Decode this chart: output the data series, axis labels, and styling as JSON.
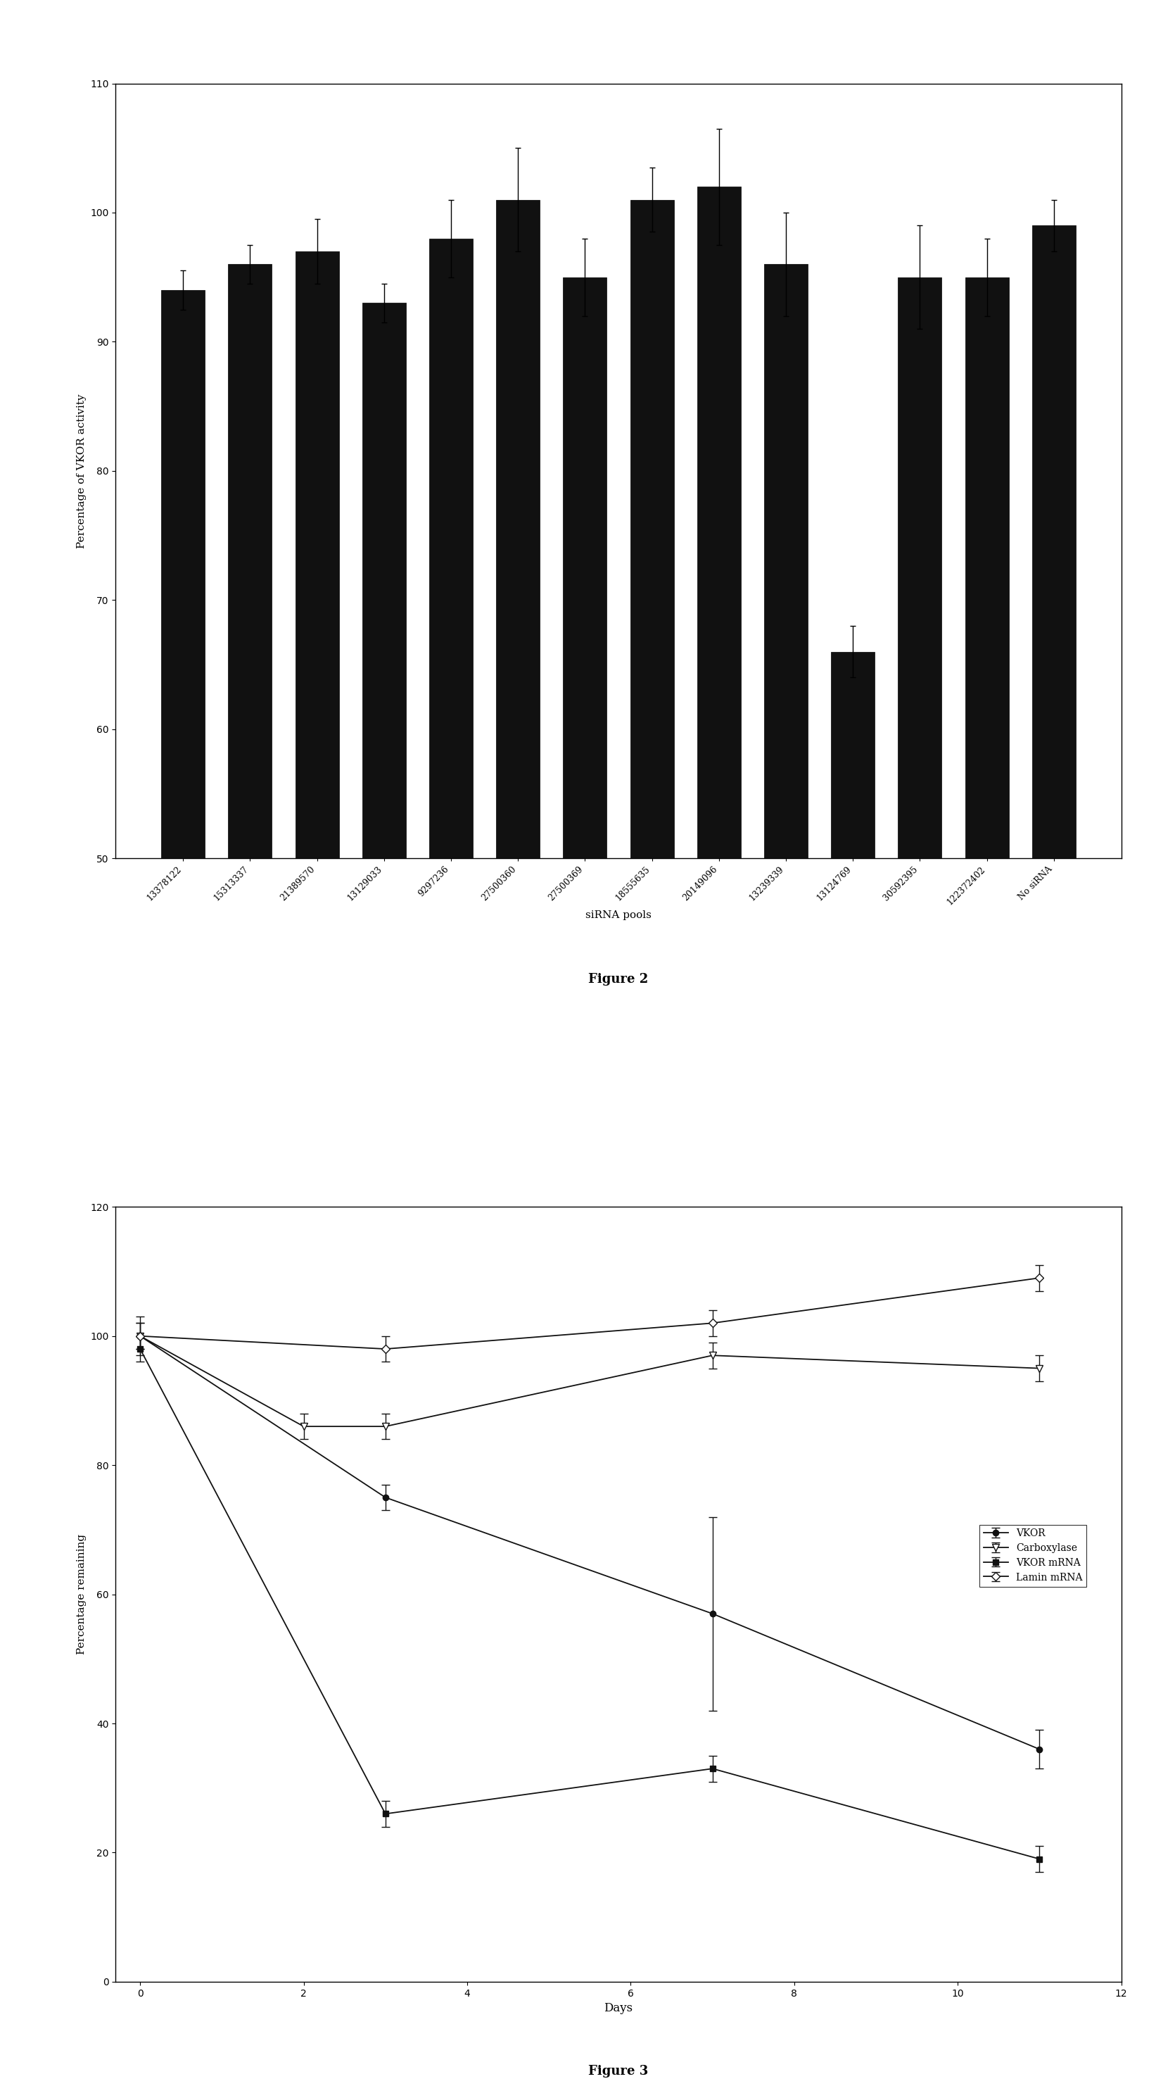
{
  "fig2": {
    "categories": [
      "13378122",
      "15313337",
      "21389570",
      "13129033",
      "9297236",
      "27500360",
      "27500369",
      "18555635",
      "20149096",
      "13239339",
      "13124769",
      "30592395",
      "122372402",
      "No siRNA"
    ],
    "values": [
      94,
      96,
      97,
      93,
      98,
      101,
      95,
      101,
      102,
      96,
      66,
      95,
      95,
      99
    ],
    "errors": [
      1.5,
      1.5,
      2.5,
      1.5,
      3,
      4,
      3,
      2.5,
      4.5,
      4,
      2,
      4,
      3,
      2
    ],
    "bar_color": "#111111",
    "ylabel": "Percentage of VKOR activity",
    "xlabel": "siRNA pools",
    "ylim": [
      50,
      110
    ],
    "yticks": [
      50,
      60,
      70,
      80,
      90,
      100,
      110
    ],
    "title": "Figure 2"
  },
  "fig3": {
    "days": [
      0,
      3,
      7,
      11
    ],
    "days_carb": [
      0,
      2,
      3,
      7,
      11
    ],
    "vkor": [
      100,
      75,
      57,
      36
    ],
    "vkor_err": [
      3,
      2,
      15,
      3
    ],
    "carboxylase": [
      100,
      86,
      86,
      97,
      95
    ],
    "carboxylase_err": [
      2,
      2,
      2,
      2,
      2
    ],
    "vkor_mrna": [
      98,
      26,
      33,
      19
    ],
    "vkor_mrna_err": [
      2,
      2,
      2,
      2
    ],
    "lamin_mrna": [
      100,
      98,
      102,
      109
    ],
    "lamin_mrna_err": [
      2,
      2,
      2,
      2
    ],
    "ylabel": "Percentage remaining",
    "xlabel": "Days",
    "ylim": [
      0,
      120
    ],
    "yticks": [
      0,
      20,
      40,
      60,
      80,
      100,
      120
    ],
    "xlim": [
      -0.3,
      12
    ],
    "xticks": [
      0,
      2,
      4,
      6,
      8,
      10,
      12
    ],
    "title": "Figure 3",
    "line_color": "#111111",
    "legend_labels": [
      "VKOR",
      "Carboxylase",
      "VKOR mRNA",
      "Lamin mRNA"
    ]
  }
}
